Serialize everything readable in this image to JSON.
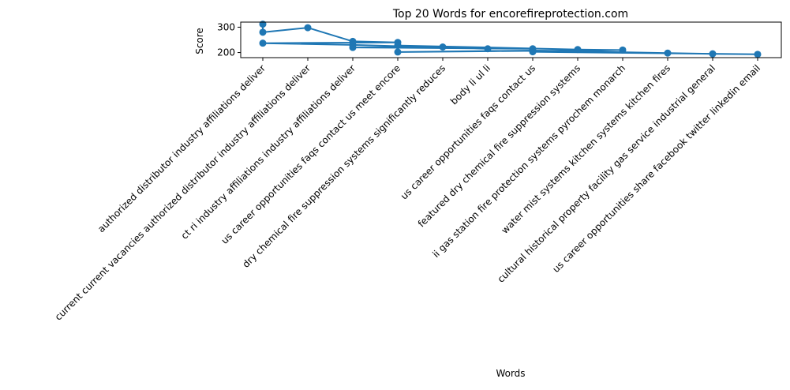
{
  "chart_data": {
    "type": "line",
    "title": "Top 20 Words for encorefireprotection.com",
    "xlabel": "Words",
    "ylabel": "Score",
    "ylim": [
      180,
      320
    ],
    "yticks": [
      200,
      300
    ],
    "ytick_labels": [
      "200",
      "300"
    ],
    "grid": false,
    "legend": "none",
    "color": "#1f77b4",
    "categories": [
      "authorized distributor industry affiliations deliver",
      "current current vacancies authorized distributor industry affiliations deliver",
      "ct ri industry affiliations industry affiliations deliver",
      "us career opportunities faqs contact us meet encore",
      "dry chemical fire suppression systems significantly reduces",
      "body li ul li",
      "us career opportunities faqs contact us",
      "featured dry chemical fire suppression systems",
      "ii gas station fire protection systems pyrochem monarch",
      "water mist systems kitchen systems kitchen fires",
      "cultural historical property facility gas service industrial general",
      "us career opportunities share facebook twitter linkedin email"
    ],
    "points": [
      {
        "category": 0,
        "value": 312
      },
      {
        "category": 0,
        "value": 280
      },
      {
        "category": 1,
        "value": 298
      },
      {
        "category": 2,
        "value": 244
      },
      {
        "category": 3,
        "value": 240
      },
      {
        "category": 0,
        "value": 237
      },
      {
        "category": 2,
        "value": 230
      },
      {
        "category": 5,
        "value": 215
      },
      {
        "category": 4,
        "value": 222
      },
      {
        "category": 2,
        "value": 220
      },
      {
        "category": 6,
        "value": 215
      },
      {
        "category": 3,
        "value": 228
      },
      {
        "category": 7,
        "value": 212
      },
      {
        "category": 8,
        "value": 210
      },
      {
        "category": 3,
        "value": 202
      },
      {
        "category": 6,
        "value": 208
      },
      {
        "category": 9,
        "value": 198
      },
      {
        "category": 10,
        "value": 195
      },
      {
        "category": 11,
        "value": 193
      },
      {
        "category": 6,
        "value": 203
      }
    ]
  }
}
